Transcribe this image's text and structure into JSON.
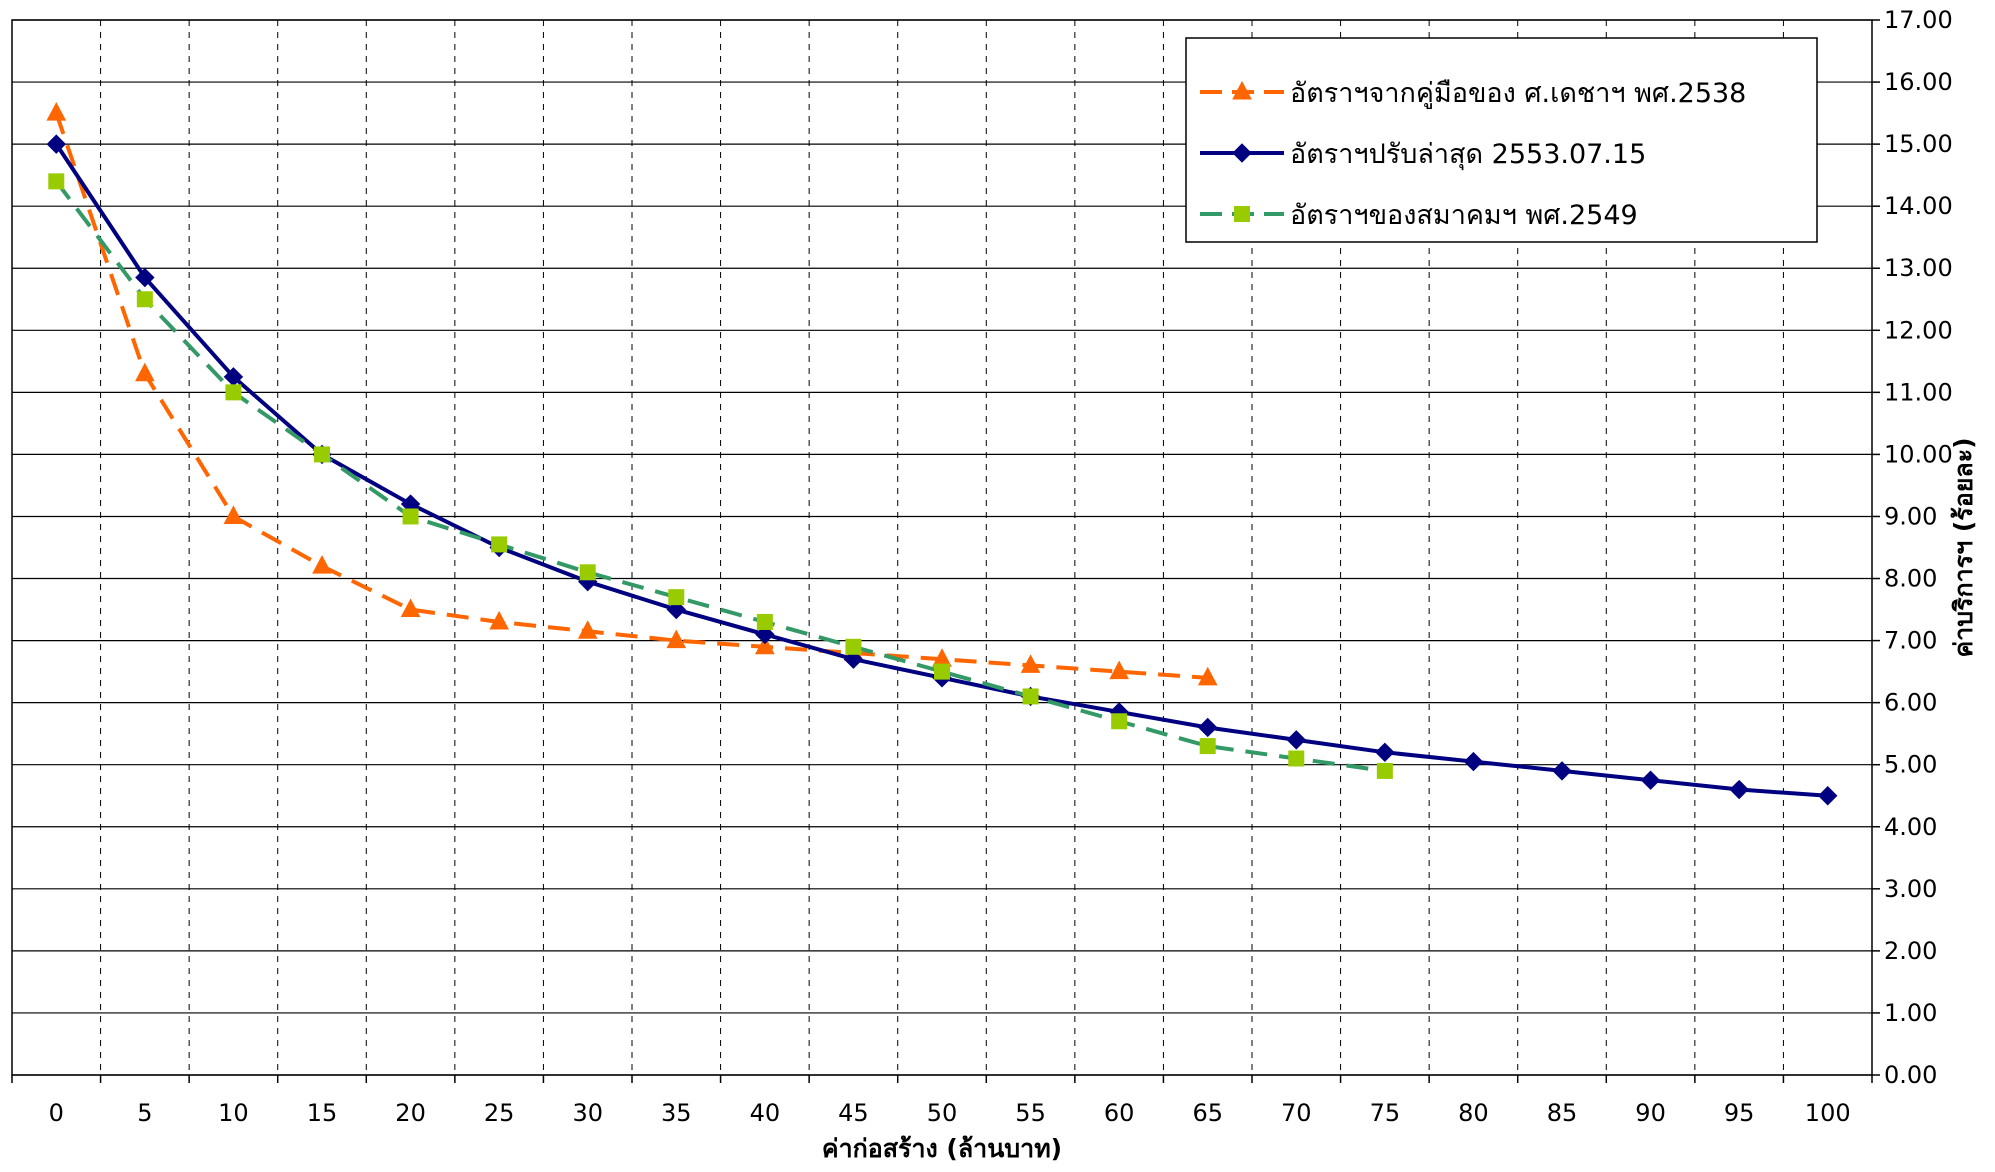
{
  "chart_data": {
    "type": "line",
    "title": "",
    "xlabel": "ค่าก่อสร้าง (ล้านบาท)",
    "ylabel": "ค่าบริการฯ (ร้อยละ)",
    "x": [
      0,
      5,
      10,
      15,
      20,
      25,
      30,
      35,
      40,
      45,
      50,
      55,
      60,
      65,
      70,
      75,
      80,
      85,
      90,
      95,
      100
    ],
    "x_tick_labels": [
      "0",
      "5",
      "10",
      "15",
      "20",
      "25",
      "30",
      "35",
      "40",
      "45",
      "50",
      "55",
      "60",
      "65",
      "70",
      "75",
      "80",
      "85",
      "90",
      "95",
      "100"
    ],
    "ylim": [
      0,
      17
    ],
    "y_tick_labels": [
      "0.00",
      "1.00",
      "2.00",
      "3.00",
      "4.00",
      "5.00",
      "6.00",
      "7.00",
      "8.00",
      "9.00",
      "10.00",
      "11.00",
      "12.00",
      "13.00",
      "14.00",
      "15.00",
      "16.00",
      "17.00"
    ],
    "grid": true,
    "legend_position": "top-right",
    "series": [
      {
        "name": "อัตราฯจากคู่มือของ ศ.เดชาฯ พศ.2538",
        "color": "#FF6600",
        "marker": "triangle",
        "dash": true,
        "x": [
          0,
          5,
          10,
          15,
          20,
          25,
          30,
          35,
          40,
          45,
          50,
          55,
          60,
          65
        ],
        "values": [
          15.5,
          11.3,
          9.0,
          8.2,
          7.5,
          7.3,
          7.15,
          7.0,
          6.9,
          6.8,
          6.7,
          6.6,
          6.5,
          6.4
        ]
      },
      {
        "name": "อัตราฯปรับล่าสุด 2553.07.15",
        "color": "#000080",
        "marker": "diamond",
        "dash": false,
        "x": [
          0,
          5,
          10,
          15,
          20,
          25,
          30,
          35,
          40,
          45,
          50,
          55,
          60,
          65,
          70,
          75,
          80,
          85,
          90,
          95,
          100
        ],
        "values": [
          15.0,
          12.85,
          11.25,
          10.0,
          9.2,
          8.5,
          7.95,
          7.5,
          7.1,
          6.7,
          6.4,
          6.1,
          5.85,
          5.6,
          5.4,
          5.2,
          5.05,
          4.9,
          4.75,
          4.6,
          4.5
        ]
      },
      {
        "name": "อัตราฯของสมาคมฯ พศ.2549",
        "color": "#339966",
        "marker_color": "#99CC00",
        "marker": "square",
        "dash": true,
        "x": [
          0,
          5,
          10,
          15,
          20,
          25,
          30,
          35,
          40,
          45,
          50,
          55,
          60,
          65,
          70,
          75
        ],
        "values": [
          14.4,
          12.5,
          11.0,
          10.0,
          9.0,
          8.55,
          8.1,
          7.7,
          7.3,
          6.9,
          6.5,
          6.1,
          5.7,
          5.3,
          5.1,
          4.9
        ]
      }
    ]
  }
}
